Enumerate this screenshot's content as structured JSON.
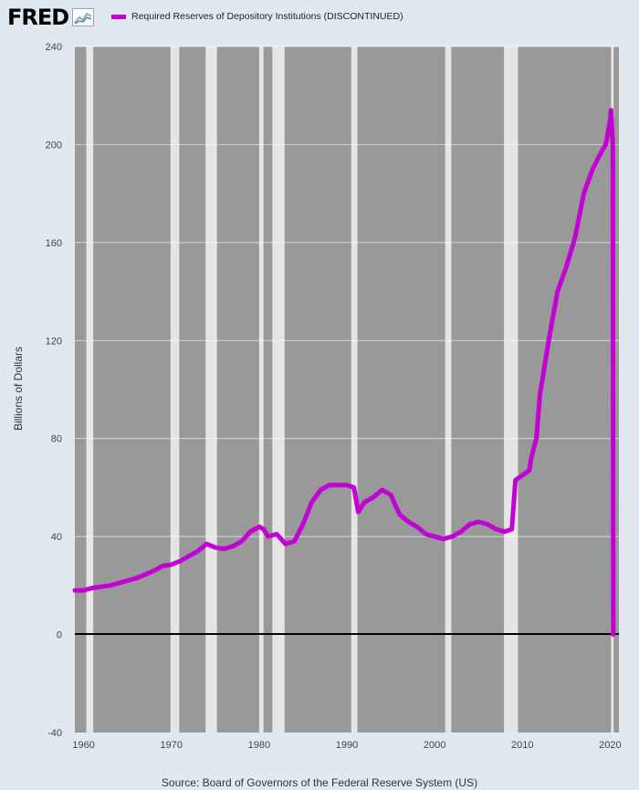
{
  "header": {
    "logo_text": "FRED",
    "legend_label": "Required Reserves of Depository Institutions (DISCONTINUED)"
  },
  "colors": {
    "series": "#c300d4",
    "recession_band": "#e5e5e5",
    "plot_background": "#999999",
    "page_background": "#e1e9f0"
  },
  "source_text": "Source: Board of Governors of the Federal Reserve System (US)",
  "chart_data": {
    "type": "line",
    "title": "",
    "xlabel": "",
    "ylabel": "Billions of Dollars",
    "xlim": [
      1959.0,
      2021.0
    ],
    "ylim": [
      -40,
      240
    ],
    "y_ticks": [
      -40,
      0,
      40,
      80,
      120,
      160,
      200,
      240
    ],
    "x_ticks": [
      1960,
      1970,
      1980,
      1990,
      2000,
      2010,
      2020
    ],
    "grid": "horizontal",
    "legend_placement": "top",
    "zero_line": true,
    "recessions": [
      [
        1960.3,
        1961.1
      ],
      [
        1969.9,
        1970.9
      ],
      [
        1973.9,
        1975.2
      ],
      [
        1980.0,
        1980.5
      ],
      [
        1981.5,
        1982.9
      ],
      [
        1990.5,
        1991.2
      ],
      [
        2001.2,
        2001.9
      ],
      [
        2007.9,
        2009.5
      ],
      [
        2020.1,
        2020.4
      ]
    ],
    "series": [
      {
        "name": "Required Reserves of Depository Institutions (DISCONTINUED)",
        "x": [
          1959.0,
          1960.0,
          1961.0,
          1962.0,
          1963.0,
          1964.0,
          1965.0,
          1966.0,
          1967.0,
          1968.0,
          1969.0,
          1970.0,
          1971.0,
          1972.0,
          1973.0,
          1974.0,
          1975.0,
          1976.0,
          1977.0,
          1978.0,
          1979.0,
          1980.0,
          1980.5,
          1981.0,
          1982.0,
          1983.0,
          1984.0,
          1985.0,
          1986.0,
          1987.0,
          1988.0,
          1989.0,
          1990.0,
          1990.8,
          1991.3,
          1992.0,
          1993.0,
          1994.0,
          1995.0,
          1996.0,
          1997.0,
          1998.0,
          1999.0,
          2000.0,
          2001.0,
          2002.0,
          2003.0,
          2004.0,
          2005.0,
          2006.0,
          2007.0,
          2008.0,
          2008.8,
          2009.2,
          2010.0,
          2010.8,
          2011.0,
          2011.6,
          2012.0,
          2013.0,
          2014.0,
          2015.0,
          2016.0,
          2017.0,
          2018.0,
          2019.0,
          2019.5,
          2020.0,
          2020.1,
          2020.3,
          2020.35
        ],
        "values": [
          18,
          18,
          19,
          19.5,
          20,
          21,
          22,
          23,
          24.5,
          26,
          28,
          28.5,
          30,
          32,
          34,
          37,
          35.5,
          35,
          36,
          38,
          42,
          44,
          43,
          40,
          41,
          37,
          38,
          45,
          54,
          59,
          61,
          61,
          61,
          60,
          50,
          54,
          56,
          59,
          57,
          49,
          46,
          44,
          41,
          40,
          39,
          40,
          42,
          45,
          46,
          45,
          43,
          42,
          43,
          63,
          65,
          67,
          72,
          80,
          98,
          120,
          140,
          150,
          162,
          180,
          190,
          197,
          200,
          210,
          214,
          200,
          0
        ]
      }
    ]
  }
}
